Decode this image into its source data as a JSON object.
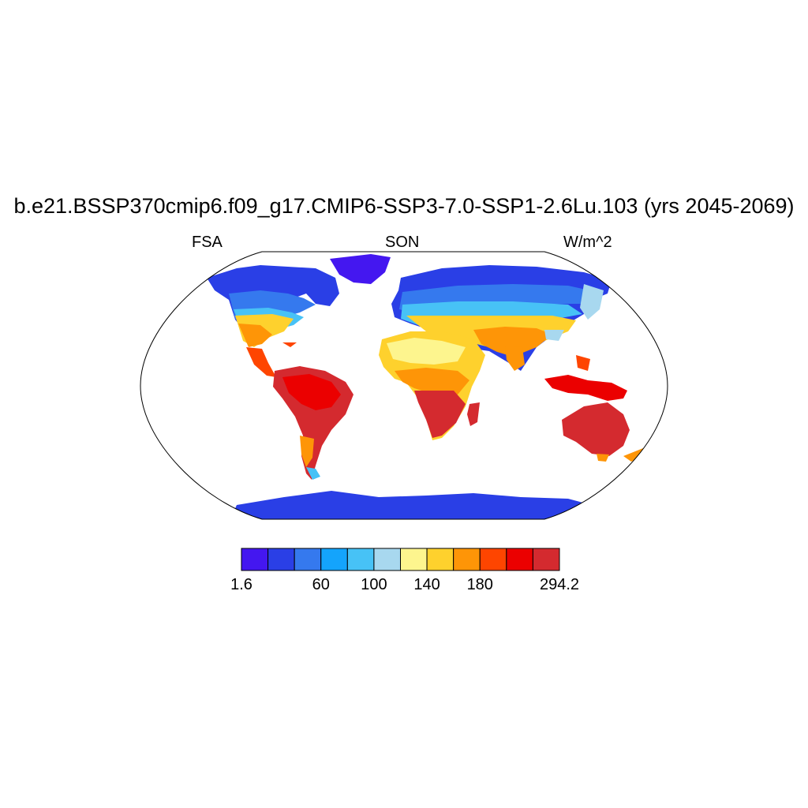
{
  "title": "b.e21.BSSP370cmip6.f09_g17.CMIP6-SSP3-7.0-SSP1-2.6Lu.103 (yrs 2045-2069)",
  "left_label": "FSA",
  "center_label": "SON",
  "right_label": "W/m^2",
  "colors": {
    "ocean": "#ffffff",
    "frame": "#000000",
    "antarctica": "#2a3fe6",
    "greenland": "#4417f0"
  },
  "colorbar": {
    "colors": [
      "#4417f0",
      "#2a3fe6",
      "#3579ee",
      "#14a4fc",
      "#47c2f6",
      "#a8d8ef",
      "#fdf58e",
      "#fed12d",
      "#fe9507",
      "#fe4500",
      "#eb0000",
      "#d42a2f"
    ],
    "labels": [
      "1.6",
      "60",
      "100",
      "140",
      "180",
      "294.2"
    ]
  }
}
